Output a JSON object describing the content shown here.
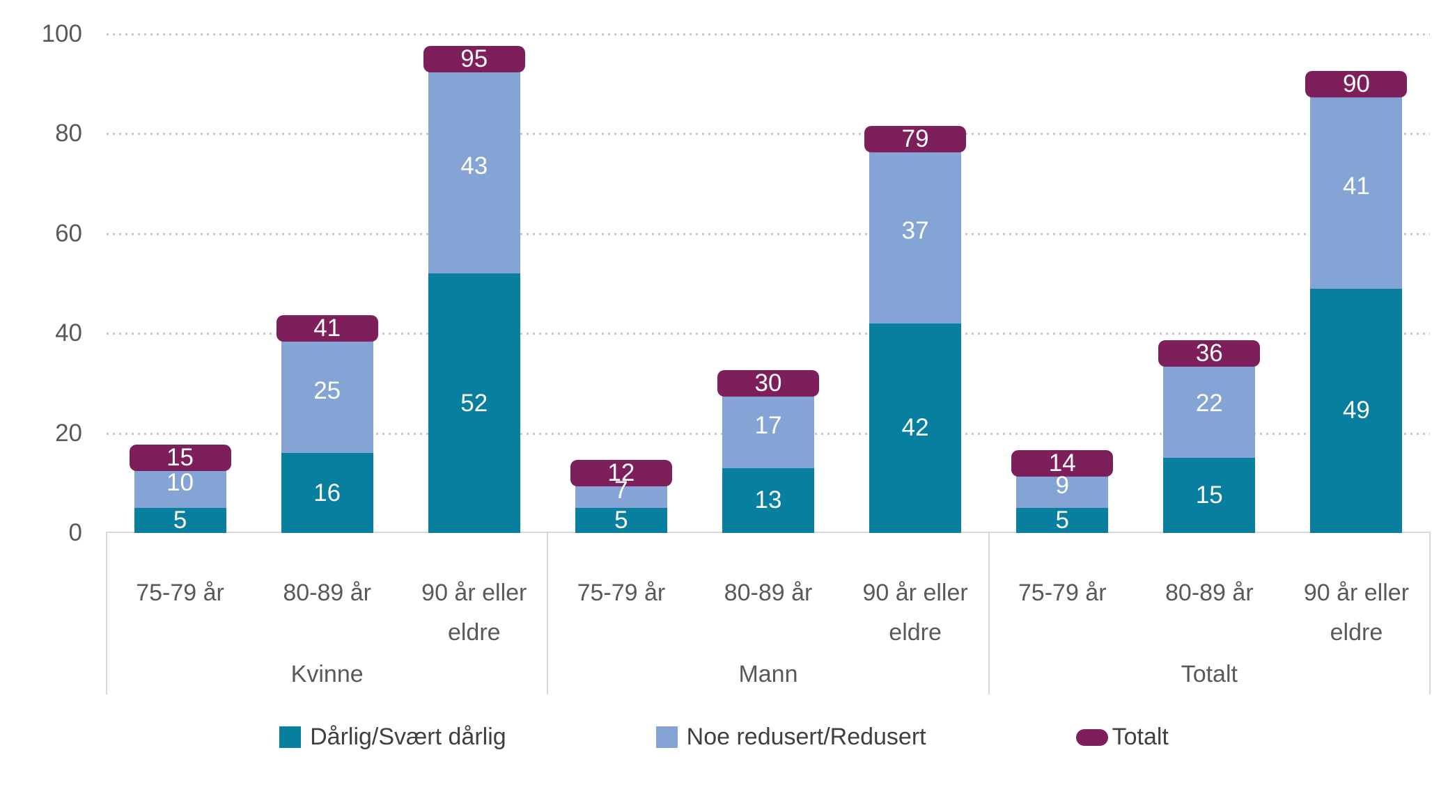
{
  "chart_data": {
    "type": "bar",
    "stacked": true,
    "title": "",
    "xlabel": "",
    "ylabel": "",
    "ylim": [
      0,
      100
    ],
    "yticks": [
      0,
      20,
      40,
      60,
      80,
      100
    ],
    "grid": "dotted-horizontal",
    "legend_position": "bottom",
    "groups": [
      "Kvinne",
      "Mann",
      "Totalt"
    ],
    "categories": [
      "75-79 år",
      "80-89 år",
      "90 år eller eldre"
    ],
    "series": [
      {
        "name": "Dårlig/Svært dårlig",
        "role": "stack-segment",
        "color": "#087f9f",
        "values": [
          [
            5,
            16,
            52
          ],
          [
            5,
            13,
            42
          ],
          [
            5,
            15,
            49
          ]
        ]
      },
      {
        "name": "Noe redusert/Redusert",
        "role": "stack-segment",
        "color": "#85a4d6",
        "values": [
          [
            10,
            25,
            43
          ],
          [
            7,
            17,
            37
          ],
          [
            9,
            22,
            41
          ]
        ]
      },
      {
        "name": "Totalt",
        "role": "total-cap",
        "color": "#7d1f5a",
        "values": [
          [
            15,
            41,
            95
          ],
          [
            12,
            30,
            79
          ],
          [
            14,
            36,
            90
          ]
        ]
      }
    ]
  },
  "colors": {
    "grid_dots": "#c9c9c9",
    "axis_line": "#d9d9d9",
    "tick_text": "#595959",
    "legend_text": "#3f3f3f",
    "bar_value_text": "#ffffff",
    "background": "#ffffff"
  }
}
